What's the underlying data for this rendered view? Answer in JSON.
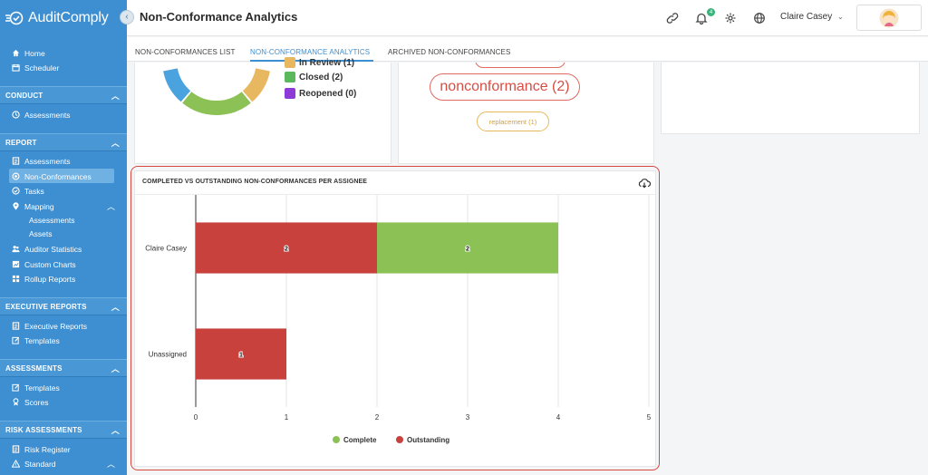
{
  "app": {
    "name": "AuditComply"
  },
  "header": {
    "title": "Non-Conformance Analytics",
    "notification_count": "4",
    "user_name": "Claire Casey"
  },
  "sidebar": {
    "top_items": [
      {
        "label": "Home"
      },
      {
        "label": "Scheduler"
      }
    ],
    "sections": [
      {
        "title": "CONDUCT",
        "items": [
          {
            "label": "Assessments"
          }
        ]
      },
      {
        "title": "REPORT",
        "items": [
          {
            "label": "Assessments"
          },
          {
            "label": "Non-Conformances"
          },
          {
            "label": "Tasks"
          },
          {
            "label": "Mapping"
          },
          {
            "label": "Assessments"
          },
          {
            "label": "Assets"
          },
          {
            "label": "Auditor Statistics"
          },
          {
            "label": "Custom Charts"
          },
          {
            "label": "Rollup Reports"
          }
        ]
      },
      {
        "title": "EXECUTIVE REPORTS",
        "items": [
          {
            "label": "Executive Reports"
          },
          {
            "label": "Templates"
          }
        ]
      },
      {
        "title": "ASSESSMENTS",
        "items": [
          {
            "label": "Templates"
          },
          {
            "label": "Scores"
          }
        ]
      },
      {
        "title": "RISK ASSESSMENTS",
        "items": [
          {
            "label": "Risk Register"
          },
          {
            "label": "Standard"
          }
        ]
      }
    ]
  },
  "tabs": [
    {
      "label": "NON-CONFORMANCES LIST"
    },
    {
      "label": "NON-CONFORMANCE ANALYTICS"
    },
    {
      "label": "ARCHIVED NON-CONFORMANCES"
    }
  ],
  "status_legend": [
    {
      "label": "In Review (1)",
      "color": "#e8b860"
    },
    {
      "label": "Closed (2)",
      "color": "#5cb85c"
    },
    {
      "label": "Reopened (0)",
      "color": "#8e3ad6"
    }
  ],
  "donut": {
    "segments": [
      {
        "value": 1,
        "color": "#e8b860"
      },
      {
        "value": 2,
        "color": "#8bc155"
      },
      {
        "value": 1,
        "color": "#4aa3df"
      }
    ]
  },
  "word_cloud": [
    {
      "text": "nonconformance (2)"
    },
    {
      "text": "replacement (1)"
    }
  ],
  "chart_data": {
    "type": "bar",
    "orientation": "horizontal",
    "stacked": true,
    "title": "COMPLETED VS OUTSTANDING NON-CONFORMANCES PER ASSIGNEE",
    "categories": [
      "Claire Casey",
      "Unassigned"
    ],
    "series": [
      {
        "name": "Outstanding",
        "values": [
          2,
          1
        ],
        "color": "#c9413c"
      },
      {
        "name": "Complete",
        "values": [
          2,
          0
        ],
        "color": "#8bc155"
      }
    ],
    "xlim": [
      0,
      5
    ],
    "xticks": [
      "0",
      "1",
      "2",
      "3",
      "4",
      "5"
    ],
    "grid": true,
    "legend_position": "bottom",
    "legend": [
      {
        "name": "Complete",
        "color": "#8bc155"
      },
      {
        "name": "Outstanding",
        "color": "#c9413c"
      }
    ]
  }
}
